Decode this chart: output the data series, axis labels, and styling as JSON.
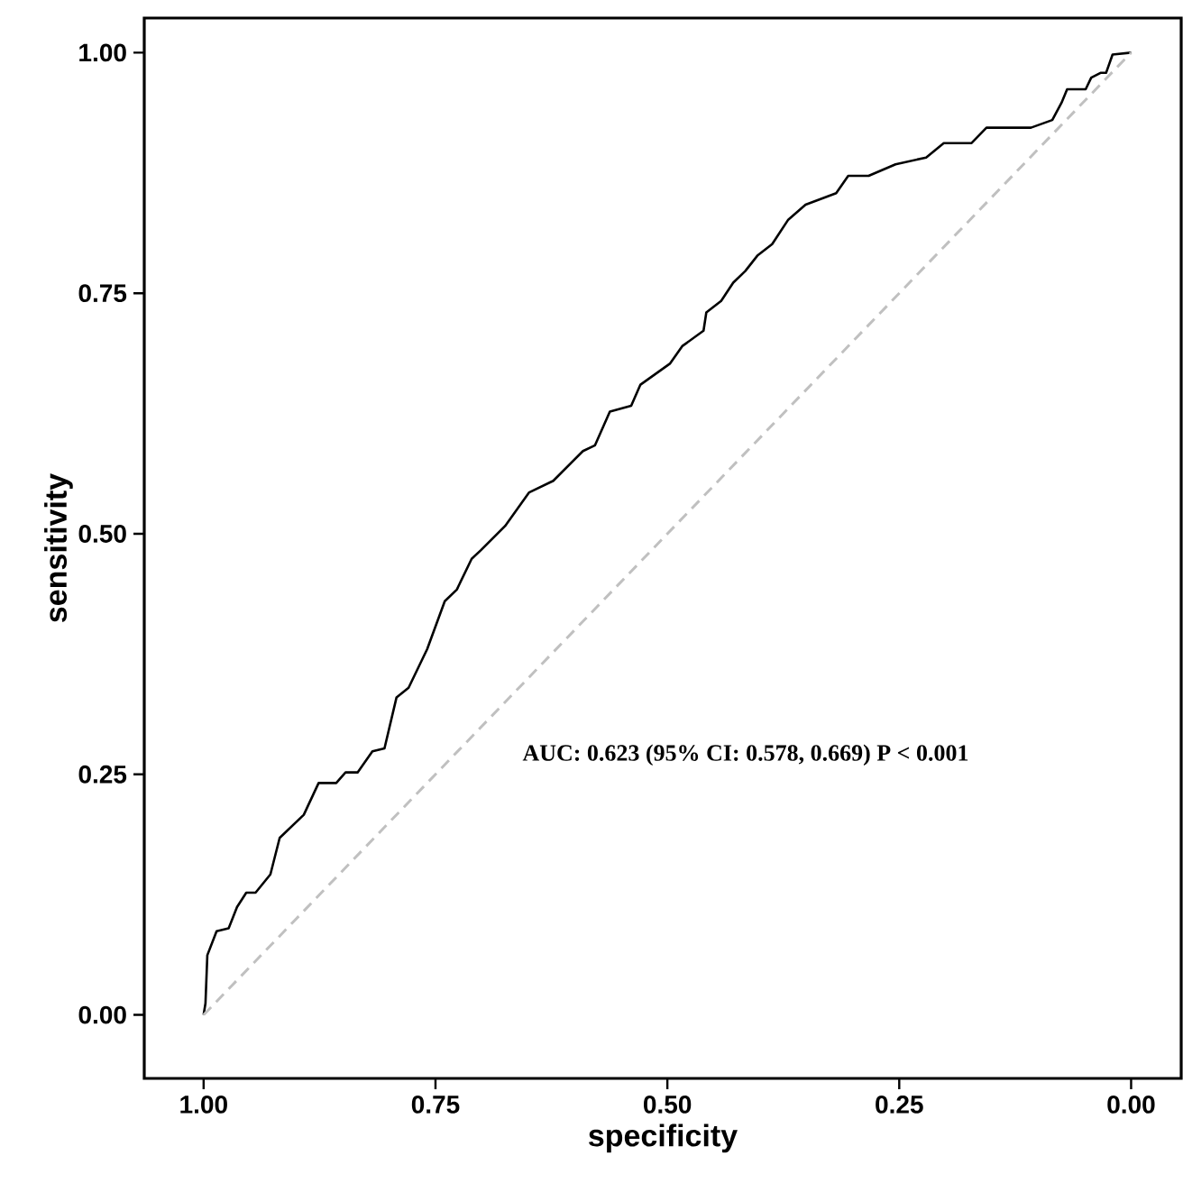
{
  "chart_data": {
    "type": "line",
    "xlabel": "specificity",
    "ylabel": "sensitivity",
    "xlim": [
      1.064,
      -0.054
    ],
    "ylim": [
      -0.066,
      1.036
    ],
    "xticks": [
      {
        "value": 1,
        "label": "1.00"
      },
      {
        "value": 0.75,
        "label": "0.75"
      },
      {
        "value": 0.5,
        "label": "0.50"
      },
      {
        "value": 0.25,
        "label": "0.25"
      },
      {
        "value": 0,
        "label": "0.00"
      }
    ],
    "yticks": [
      {
        "value": 0,
        "label": "0.00"
      },
      {
        "value": 0.25,
        "label": "0.25"
      },
      {
        "value": 0.5,
        "label": "0.50"
      },
      {
        "value": 0.75,
        "label": "0.75"
      },
      {
        "value": 1,
        "label": "1.00"
      }
    ],
    "grid": false,
    "series": [
      {
        "color": "#000000",
        "line_style": "solid",
        "x": [
          1.0,
          0.998,
          0.996,
          0.986,
          0.973,
          0.964,
          0.954,
          0.944,
          0.928,
          0.918,
          0.892,
          0.876,
          0.857,
          0.847,
          0.834,
          0.818,
          0.805,
          0.792,
          0.779,
          0.759,
          0.74,
          0.727,
          0.711,
          0.701,
          0.675,
          0.649,
          0.623,
          0.591,
          0.578,
          0.562,
          0.539,
          0.529,
          0.497,
          0.484,
          0.461,
          0.458,
          0.442,
          0.429,
          0.416,
          0.403,
          0.387,
          0.37,
          0.351,
          0.318,
          0.305,
          0.283,
          0.254,
          0.221,
          0.202,
          0.172,
          0.156,
          0.108,
          0.085,
          0.075,
          0.069,
          0.049,
          0.043,
          0.033,
          0.027,
          0.02,
          0.0
        ],
        "values": [
          0.0,
          0.012,
          0.062,
          0.087,
          0.09,
          0.112,
          0.127,
          0.127,
          0.146,
          0.184,
          0.208,
          0.241,
          0.241,
          0.252,
          0.252,
          0.274,
          0.277,
          0.33,
          0.34,
          0.38,
          0.43,
          0.442,
          0.474,
          0.483,
          0.508,
          0.543,
          0.555,
          0.586,
          0.592,
          0.627,
          0.633,
          0.655,
          0.677,
          0.695,
          0.711,
          0.73,
          0.742,
          0.761,
          0.773,
          0.789,
          0.801,
          0.826,
          0.842,
          0.854,
          0.872,
          0.872,
          0.884,
          0.891,
          0.906,
          0.906,
          0.922,
          0.922,
          0.93,
          0.948,
          0.962,
          0.962,
          0.974,
          0.979,
          0.979,
          0.998,
          1.0
        ]
      },
      {
        "color": "#c0c0c0",
        "line_style": "dashed",
        "x": [
          1,
          0
        ],
        "values": [
          0,
          1
        ]
      }
    ],
    "annotations": [
      "AUC: 0.623 (95% CI: 0.578, 0.669) P < 0.001"
    ]
  }
}
